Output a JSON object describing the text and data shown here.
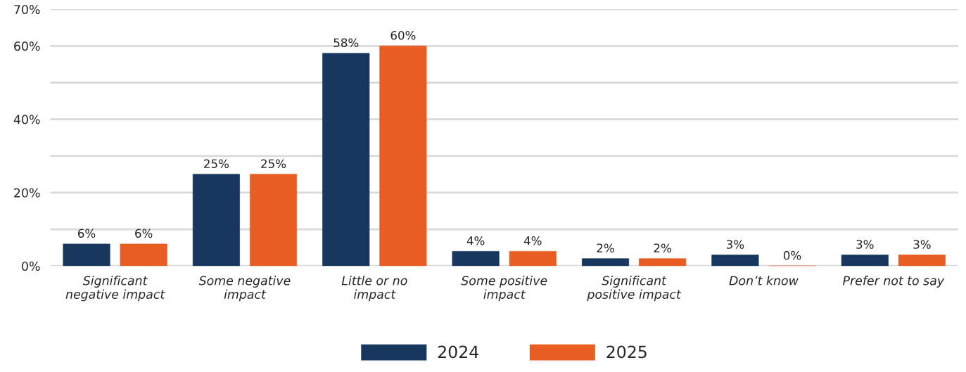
{
  "chart_data": {
    "type": "bar",
    "categories": [
      "Significant\nnegative impact",
      "Some negative\nimpact",
      "Little or no\nimpact",
      "Some positive\nimpact",
      "Significant\npositive impact",
      "Don’t know",
      "Prefer not to say"
    ],
    "series": [
      {
        "name": "2024",
        "color": "#17375e",
        "values": [
          6,
          25,
          58,
          4,
          2,
          3,
          3
        ],
        "value_labels": [
          "6%",
          "25%",
          "58%",
          "4%",
          "2%",
          "3%",
          "3%"
        ]
      },
      {
        "name": "2025",
        "color": "#e85d22",
        "values": [
          6,
          25,
          60,
          4,
          2,
          0,
          3
        ],
        "value_labels": [
          "6%",
          "25%",
          "60%",
          "4%",
          "2%",
          "0%",
          "3%"
        ]
      }
    ],
    "ylim": [
      0,
      70
    ],
    "yticks": [
      {
        "value": 0,
        "label": "0%"
      },
      {
        "value": 10,
        "label": null
      },
      {
        "value": 20,
        "label": "20%"
      },
      {
        "value": 30,
        "label": null
      },
      {
        "value": 40,
        "label": "40%"
      },
      {
        "value": 50,
        "label": null
      },
      {
        "value": 60,
        "label": "60%"
      },
      {
        "value": 70,
        "label": "70%"
      }
    ],
    "grid": "y",
    "legend": "bottom"
  }
}
